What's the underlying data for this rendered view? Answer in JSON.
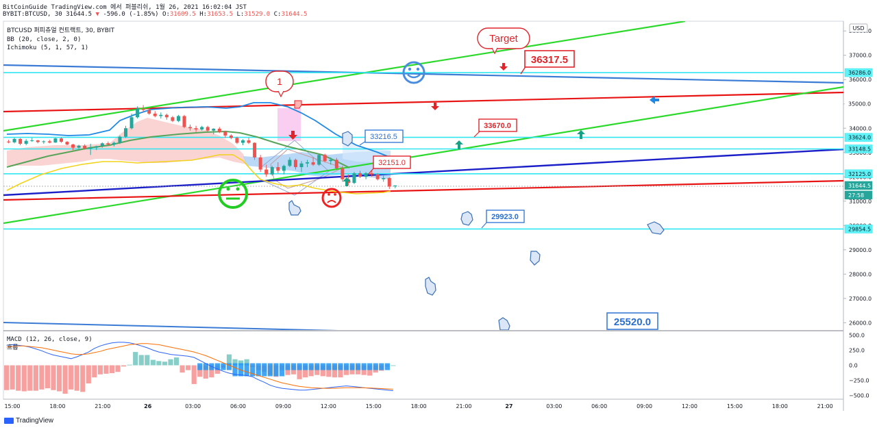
{
  "header": {
    "title_line": "BitCoinGuide TradingView.com 에서 퍼블리쉬, 1월 26, 2021 16:02:04 JST",
    "symbol_line": "BYBIT:BTCUSD, 30",
    "last": "31644.5",
    "change": "-596.0 (-1.85%)",
    "o_label": "O:",
    "o": "31609.5",
    "h_label": "H:",
    "h": "31653.5",
    "l_label": "L:",
    "l": "31529.0",
    "c_label": "C:",
    "c": "31644.5"
  },
  "legend": {
    "symbol": "BTCUSD 퍼피츄얼 컨트랙트, 30, BYBIT",
    "bb": "BB (20, close, 2, 0)",
    "ichimoku": "Ichimoku (5, 1, 57, 1)",
    "macd": "MACD (12, 26, close, 9)",
    "macd_sub": "흐름"
  },
  "footer": {
    "brand": "TradingView"
  },
  "colors": {
    "up": "#26a69a",
    "down": "#ef5350",
    "bb_mid": "#1e88e5",
    "green_line": "#22dd22",
    "red_line": "#ee1111",
    "cyan": "#00e5ff",
    "blue_line": "#1522cc",
    "label_blue": "#2962ff"
  },
  "chart_data": {
    "type": "candlestick",
    "currency": "USD",
    "price_axis_ticks": [
      38000,
      37000,
      36000,
      35000,
      34000,
      33000,
      32000,
      31000,
      30000,
      29000,
      28000,
      27000,
      26000
    ],
    "price_ylim": [
      25700,
      38400
    ],
    "time_ticks": [
      "15:00",
      "18:00",
      "21:00",
      "26",
      "03:00",
      "06:00",
      "09:00",
      "12:00",
      "15:00",
      "18:00",
      "21:00",
      "27",
      "03:00",
      "06:00",
      "09:00",
      "12:00",
      "15:00",
      "18:00",
      "21:00"
    ],
    "axis_badges": [
      {
        "value": "36286.0",
        "kind": "cyan"
      },
      {
        "value": "35000.0",
        "kind": "plain"
      },
      {
        "value": "33624.0",
        "kind": "cyan"
      },
      {
        "value": "33148.5",
        "kind": "cyan"
      },
      {
        "value": "32125.0",
        "kind": "cyan"
      },
      {
        "value": "31644.5",
        "kind": "price"
      },
      {
        "value": "27:58",
        "kind": "countdown"
      },
      {
        "value": "29854.5",
        "kind": "cyan"
      }
    ],
    "horizontal_levels": [
      36286.0,
      33624.0,
      33148.5,
      32125.0,
      29854.5
    ],
    "candles": [
      [
        33450,
        33520,
        33380,
        33420
      ],
      [
        33420,
        33600,
        33380,
        33560
      ],
      [
        33560,
        33590,
        33300,
        33360
      ],
      [
        33360,
        33550,
        33300,
        33480
      ],
      [
        33480,
        33600,
        33440,
        33500
      ],
      [
        33500,
        33520,
        33380,
        33430
      ],
      [
        33430,
        33500,
        33360,
        33460
      ],
      [
        33460,
        33520,
        33380,
        33410
      ],
      [
        33410,
        33600,
        33400,
        33580
      ],
      [
        33580,
        33620,
        33400,
        33440
      ],
      [
        33440,
        33470,
        33300,
        33330
      ],
      [
        33330,
        33360,
        33100,
        33200
      ],
      [
        33200,
        33320,
        33150,
        33280
      ],
      [
        33280,
        33340,
        33120,
        33160
      ],
      [
        33160,
        33360,
        32900,
        33200
      ],
      [
        33200,
        33280,
        33100,
        33260
      ],
      [
        33260,
        33420,
        33200,
        33380
      ],
      [
        33380,
        33450,
        33300,
        33330
      ],
      [
        33330,
        33450,
        33250,
        33400
      ],
      [
        33400,
        33700,
        33350,
        33650
      ],
      [
        33650,
        34100,
        33600,
        34000
      ],
      [
        34000,
        34600,
        33950,
        34450
      ],
      [
        34450,
        34900,
        34400,
        34800
      ],
      [
        34800,
        34950,
        34650,
        34750
      ],
      [
        34750,
        34850,
        34550,
        34600
      ],
      [
        34600,
        34700,
        34450,
        34500
      ],
      [
        34500,
        34650,
        34400,
        34550
      ],
      [
        34550,
        34600,
        34350,
        34450
      ],
      [
        34450,
        34500,
        34250,
        34300
      ],
      [
        34300,
        34550,
        34250,
        34500
      ],
      [
        34500,
        34550,
        34000,
        34050
      ],
      [
        34050,
        34150,
        33900,
        34000
      ],
      [
        34000,
        34100,
        33850,
        33950
      ],
      [
        33950,
        34100,
        33900,
        34050
      ],
      [
        34050,
        34100,
        33850,
        33900
      ],
      [
        33900,
        34000,
        33750,
        33980
      ],
      [
        33980,
        34050,
        33800,
        33850
      ],
      [
        33850,
        33900,
        33600,
        33700
      ],
      [
        33700,
        33750,
        33550,
        33600
      ],
      [
        33600,
        33650,
        33350,
        33400
      ],
      [
        33400,
        33550,
        33300,
        33500
      ],
      [
        33500,
        33600,
        33350,
        33400
      ],
      [
        33400,
        33420,
        32700,
        32800
      ],
      [
        32800,
        32900,
        32200,
        32300
      ],
      [
        32300,
        32500,
        32000,
        32100
      ],
      [
        32100,
        32450,
        32050,
        32400
      ],
      [
        32400,
        32600,
        32150,
        32250
      ],
      [
        32250,
        32500,
        32100,
        32450
      ],
      [
        32450,
        32800,
        32400,
        32700
      ],
      [
        32700,
        32750,
        32300,
        32400
      ],
      [
        32400,
        32650,
        32200,
        32550
      ],
      [
        32550,
        32700,
        32400,
        32600
      ],
      [
        32600,
        32800,
        32450,
        32500
      ],
      [
        32500,
        32950,
        32450,
        32900
      ],
      [
        32900,
        32950,
        32600,
        32650
      ],
      [
        32650,
        32800,
        32500,
        32700
      ],
      [
        32700,
        32780,
        32300,
        32350
      ],
      [
        32350,
        32450,
        31800,
        31900
      ],
      [
        31900,
        32100,
        31650,
        31750
      ],
      [
        31750,
        32200,
        31700,
        32150
      ],
      [
        32150,
        32250,
        31950,
        32000
      ],
      [
        32000,
        32200,
        31900,
        32150
      ],
      [
        32150,
        32250,
        32000,
        32100
      ],
      [
        32100,
        32150,
        31850,
        31900
      ],
      [
        31900,
        32050,
        31800,
        31950
      ],
      [
        31950,
        31980,
        31500,
        31600
      ],
      [
        31609.5,
        31653.5,
        31529,
        31644.5
      ]
    ],
    "text_labels": [
      {
        "text": "Target",
        "style": "bubble"
      },
      {
        "text": "1",
        "style": "bubble"
      },
      {
        "text": "36317.5",
        "style": "red-box"
      },
      {
        "text": "33670.0",
        "style": "red-box"
      },
      {
        "text": "32151.0",
        "style": "red-box"
      },
      {
        "text": "33216.5",
        "style": "blue-box"
      },
      {
        "text": "29923.0",
        "style": "blue-box"
      },
      {
        "text": "25520.0",
        "style": "blue-box"
      }
    ],
    "macd": {
      "ticks": [
        "500.0",
        "250.0",
        "0.0",
        "−250.0",
        "−500.0"
      ],
      "ylim": [
        -560,
        560
      ],
      "histogram": [
        -410,
        -400,
        -420,
        -430,
        -420,
        -420,
        -400,
        -380,
        -410,
        -430,
        -470,
        -400,
        -420,
        -440,
        -300,
        -200,
        -150,
        -140,
        -130,
        -110,
        -20,
        10,
        220,
        170,
        170,
        90,
        70,
        60,
        100,
        130,
        -120,
        -80,
        -310,
        -190,
        -220,
        -200,
        -140,
        -40,
        180,
        100,
        80,
        100,
        -30,
        -80,
        -110,
        -160,
        -190,
        -80,
        -160,
        -150,
        -230,
        -200,
        -180,
        -160,
        -180,
        -190,
        -200,
        -200,
        -160,
        -150,
        -150,
        -160,
        -170,
        -120,
        -90,
        -20,
        0
      ],
      "macd_line": [
        330,
        340,
        330,
        320,
        300,
        270,
        240,
        200,
        170,
        150,
        130,
        110,
        140,
        180,
        220,
        280,
        320,
        350,
        370,
        380,
        380,
        370,
        350,
        320,
        290,
        250,
        220,
        200,
        180,
        170,
        160,
        150,
        130,
        80,
        30,
        -20,
        -60,
        -100,
        -130,
        -150,
        -160,
        -170,
        -190,
        -240,
        -280,
        -330,
        -360,
        -380,
        -390,
        -400,
        -410,
        -410,
        -400,
        -390,
        -380,
        -370,
        -360,
        -350,
        -340,
        -350,
        -360,
        -370,
        -380,
        -390,
        -400,
        -410,
        -420
      ],
      "signal_line": [
        300,
        310,
        320,
        320,
        310,
        300,
        290,
        270,
        250,
        230,
        210,
        190,
        180,
        180,
        190,
        210,
        230,
        260,
        280,
        300,
        320,
        340,
        350,
        360,
        360,
        350,
        340,
        320,
        300,
        280,
        260,
        240,
        220,
        190,
        160,
        120,
        80,
        40,
        0,
        -40,
        -80,
        -110,
        -140,
        -170,
        -200,
        -230,
        -260,
        -290,
        -310,
        -330,
        -350,
        -360,
        -370,
        -375,
        -380,
        -380,
        -380,
        -375,
        -370,
        -370,
        -370,
        -372,
        -375,
        -380,
        -385,
        -390,
        -395
      ]
    }
  }
}
